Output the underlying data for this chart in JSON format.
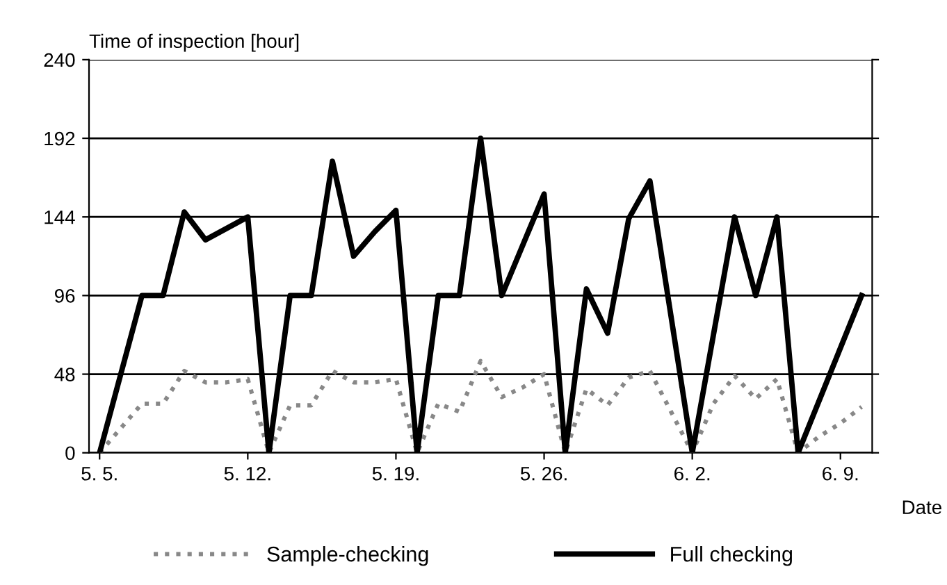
{
  "chart_data": {
    "type": "line",
    "ylabel": "Time of inspection [hour]",
    "xlabel": "Date",
    "categories": [
      "5. 5.",
      null,
      null,
      null,
      null,
      null,
      null,
      "5. 12.",
      null,
      null,
      null,
      null,
      null,
      null,
      "5. 19.",
      null,
      null,
      null,
      null,
      null,
      null,
      "5. 26.",
      null,
      null,
      null,
      null,
      null,
      null,
      "6. 2.",
      null,
      null,
      null,
      null,
      null,
      null,
      "6. 9.",
      null
    ],
    "series": [
      {
        "name": "Sample-checking",
        "color": "#888888",
        "line_style": "dotted",
        "values": [
          0,
          15,
          30,
          30,
          50,
          43,
          43,
          45,
          0,
          29,
          29,
          50,
          43,
          43,
          45,
          0,
          30,
          25,
          56,
          34,
          40,
          48,
          0,
          39,
          29,
          46,
          50,
          25,
          0,
          30,
          47,
          33,
          45,
          0,
          10,
          18,
          28
        ]
      },
      {
        "name": "Full checking",
        "color": "#000000",
        "line_style": "solid",
        "values": [
          0,
          48,
          96,
          96,
          147,
          130,
          137,
          144,
          0,
          96,
          96,
          178,
          120,
          135,
          148,
          0,
          96,
          96,
          192,
          96,
          127,
          158,
          0,
          100,
          73,
          143,
          166,
          83,
          0,
          72,
          144,
          96,
          144,
          0,
          32,
          64,
          96
        ]
      }
    ],
    "ylim": [
      0,
      240
    ],
    "yticks": [
      0,
      48,
      96,
      144,
      192,
      240
    ],
    "grid": "y",
    "legend": "bottom",
    "marker": "none"
  }
}
